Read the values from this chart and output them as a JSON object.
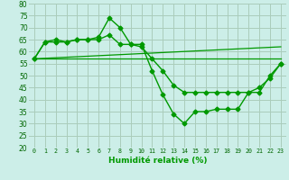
{
  "title": "",
  "xlabel": "Humidité relative (%)",
  "ylabel": "",
  "bg_color": "#cceee8",
  "grid_color": "#aaccbb",
  "line_color": "#009900",
  "xlim": [
    -0.5,
    23.5
  ],
  "ylim": [
    20,
    80
  ],
  "yticks": [
    20,
    25,
    30,
    35,
    40,
    45,
    50,
    55,
    60,
    65,
    70,
    75,
    80
  ],
  "xticks": [
    0,
    1,
    2,
    3,
    4,
    5,
    6,
    7,
    8,
    9,
    10,
    11,
    12,
    13,
    14,
    15,
    16,
    17,
    18,
    19,
    20,
    21,
    22,
    23
  ],
  "series": [
    {
      "x": [
        0,
        1,
        2,
        3,
        4,
        5,
        6,
        7,
        8,
        9,
        10,
        11,
        12,
        13,
        14,
        15,
        16,
        17,
        18,
        19,
        20,
        21,
        22,
        23
      ],
      "y": [
        57,
        64,
        65,
        64,
        65,
        65,
        66,
        74,
        70,
        63,
        63,
        52,
        42,
        34,
        30,
        35,
        35,
        36,
        36,
        36,
        43,
        45,
        49,
        55
      ],
      "marker": "D",
      "markersize": 2.5,
      "linewidth": 1.0
    },
    {
      "x": [
        0,
        1,
        2,
        3,
        4,
        5,
        6,
        7,
        8,
        9,
        10,
        11,
        12,
        13,
        14,
        15,
        16,
        17,
        18,
        19,
        20,
        21,
        22,
        23
      ],
      "y": [
        57,
        64,
        64,
        64,
        65,
        65,
        65,
        67,
        63,
        63,
        62,
        57,
        52,
        46,
        43,
        43,
        43,
        43,
        43,
        43,
        43,
        43,
        50,
        55
      ],
      "marker": "D",
      "markersize": 2.5,
      "linewidth": 1.0
    },
    {
      "x": [
        0,
        23
      ],
      "y": [
        57,
        57
      ],
      "marker": null,
      "markersize": 0,
      "linewidth": 0.9
    },
    {
      "x": [
        0,
        23
      ],
      "y": [
        57,
        62
      ],
      "marker": null,
      "markersize": 0,
      "linewidth": 0.9
    }
  ]
}
